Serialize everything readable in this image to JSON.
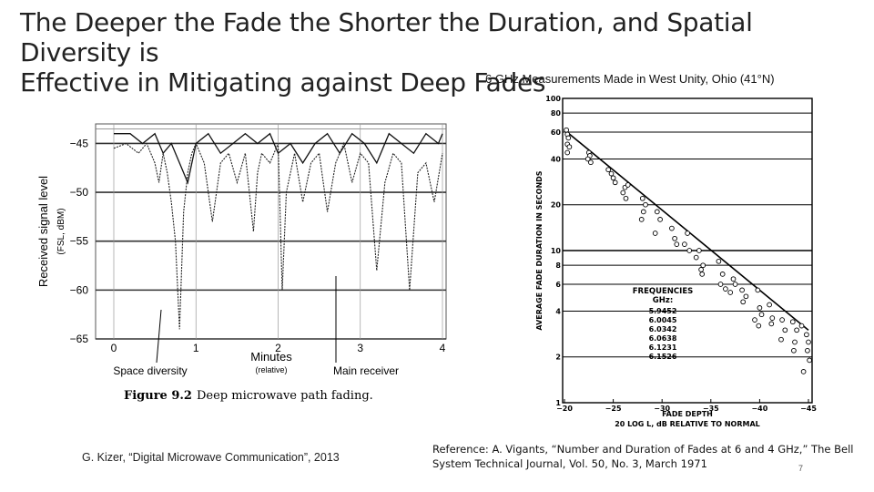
{
  "slide": {
    "title_line1": "The Deeper the Fade the Shorter the Duration, and Spatial Diversity is",
    "title_line2": "Effective in Mitigating against Deep Fades",
    "subtitle": "6 GHz Measurements Made in West Unity, Ohio (41°N)",
    "citation_left": "G. Kizer, “Digital Microwave Communication”, 2013",
    "citation_right_line1": "Reference: A. Vigants, “Number and Duration of Fades at 6 and 4 GHz,” The Bell",
    "citation_right_line2": "System Technical Journal, Vol. 50, No. 3, March 1971",
    "page_number": "7"
  },
  "chart_data": [
    {
      "type": "line",
      "caption_label": "Figure 9.2",
      "caption_text": "Deep microwave path fading.",
      "ylabel_line1": "Received signal level",
      "ylabel_line2": "(FSL, dBM)",
      "xlabel": "Minutes",
      "xlabel_sub": "(relative)",
      "x_ticks": [
        "0",
        "1",
        "2",
        "3",
        "4"
      ],
      "y_ticks": [
        "−45",
        "−50",
        "−55",
        "−60",
        "−65"
      ],
      "xlim": [
        0,
        4
      ],
      "ylim": [
        -65,
        -43
      ],
      "grid": true,
      "annotations": [
        "Space diversity",
        "Main receiver"
      ],
      "series": [
        {
          "x": [
            0,
            0.15,
            0.3,
            0.4,
            0.5,
            0.55,
            0.6,
            0.65,
            0.7,
            0.75,
            0.8,
            0.85,
            0.9,
            0.95,
            1.0,
            1.1,
            1.2,
            1.3,
            1.4,
            1.5,
            1.6,
            1.7,
            1.75,
            1.8,
            1.9,
            2.0,
            2.05,
            2.1,
            2.2,
            2.3,
            2.4,
            2.5,
            2.6,
            2.7,
            2.8,
            2.9,
            3.0,
            3.1,
            3.2,
            3.3,
            3.4,
            3.5,
            3.6,
            3.7,
            3.8,
            3.9,
            4.0
          ],
          "values": [
            -45.5,
            -45,
            -46,
            -45,
            -47,
            -49,
            -46,
            -48,
            -51,
            -55,
            -64,
            -52,
            -48,
            -46,
            -45,
            -47,
            -53,
            -47,
            -46,
            -49,
            -46,
            -54,
            -48,
            -46,
            -47,
            -45,
            -60,
            -50,
            -46,
            -51,
            -47,
            -46,
            -52,
            -47,
            -45,
            -49,
            -46,
            -47,
            -58,
            -49,
            -46,
            -47,
            -60,
            -48,
            -47,
            -51,
            -46
          ]
        },
        {
          "x": [
            0,
            0.2,
            0.35,
            0.5,
            0.6,
            0.7,
            0.8,
            0.9,
            1.0,
            1.15,
            1.3,
            1.45,
            1.6,
            1.75,
            1.9,
            2.0,
            2.15,
            2.3,
            2.45,
            2.6,
            2.75,
            2.9,
            3.05,
            3.2,
            3.35,
            3.5,
            3.65,
            3.8,
            3.95,
            4.0
          ],
          "values": [
            -44,
            -44,
            -45,
            -44,
            -46,
            -45,
            -47,
            -49,
            -45,
            -44,
            -46,
            -45,
            -44,
            -45,
            -44,
            -46,
            -45,
            -47,
            -45,
            -44,
            -46,
            -44,
            -45,
            -47,
            -44,
            -45,
            -46,
            -44,
            -45,
            -44
          ]
        }
      ]
    },
    {
      "type": "scatter",
      "x_title": "FADE DEPTH",
      "x_subtitle": "20 LOG L, dB RELATIVE TO NORMAL",
      "ylabel": "AVERAGE FADE DURATION IN SECONDS",
      "x_ticks": [
        "−20",
        "−25",
        "−30",
        "−35",
        "−40",
        "−45"
      ],
      "y_ticks": [
        "100",
        "80",
        "60",
        "40",
        "20",
        "10",
        "8",
        "6",
        "4",
        "2",
        "1"
      ],
      "xlim": [
        -20,
        -45
      ],
      "ylim": [
        1,
        100
      ],
      "y_scale": "log",
      "legend_title_line1": "FREQUENCIES",
      "legend_title_line2": "GHz:",
      "frequencies": [
        "5.9452",
        "6.0045",
        "6.0342",
        "6.0638",
        "6.1231",
        "6.1526"
      ],
      "fit_line": {
        "x": [
          -20,
          -45
        ],
        "y": [
          62,
          3
        ]
      },
      "points": {
        "x": [
          -20.2,
          -20.3,
          -20.4,
          -20.3,
          -20.5,
          -20.3,
          -22.5,
          -22.6,
          -22.4,
          -22.7,
          -24.5,
          -24.8,
          -25.0,
          -25.2,
          -26.2,
          -26.0,
          -26.5,
          -26.3,
          -28.0,
          -28.3,
          -28.1,
          -27.9,
          -29.5,
          -29.8,
          -29.3,
          -31.0,
          -31.3,
          -31.5,
          -32.6,
          -32.3,
          -32.8,
          -33.8,
          -33.5,
          -34.2,
          -34.0,
          -34.1,
          -35.8,
          -36.2,
          -36.0,
          -36.5,
          -37.3,
          -37.5,
          -37.0,
          -38.2,
          -38.6,
          -38.3,
          -39.8,
          -40.0,
          -40.2,
          -39.5,
          -39.9,
          -41.0,
          -41.3,
          -41.2,
          -42.3,
          -42.6,
          -42.2,
          -43.4,
          -43.8,
          -43.6,
          -43.5,
          -44.3,
          -44.8,
          -45.0,
          -44.9,
          -45.1,
          -44.5
        ],
        "y": [
          62,
          58,
          55,
          50,
          48,
          44,
          44,
          42,
          40,
          38,
          34,
          32,
          30,
          28,
          26,
          24,
          27,
          22,
          22,
          20,
          18,
          16,
          18,
          16,
          13,
          14,
          12,
          11,
          13,
          11,
          10,
          10,
          9,
          8,
          7.5,
          7,
          8.5,
          7,
          6,
          5.6,
          6.5,
          6,
          5.3,
          5.5,
          5,
          4.6,
          5.5,
          4.2,
          3.8,
          3.5,
          3.2,
          4.4,
          3.6,
          3.3,
          3.5,
          3,
          2.6,
          3.4,
          3,
          2.5,
          2.2,
          3.2,
          2.8,
          2.5,
          2.2,
          1.9,
          1.6
        ]
      }
    }
  ]
}
